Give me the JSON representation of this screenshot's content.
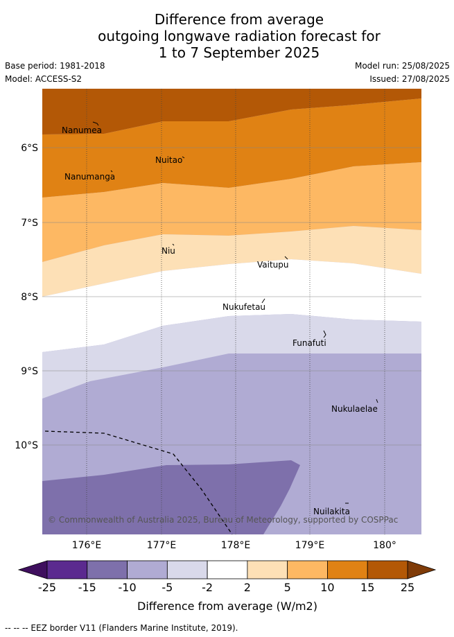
{
  "header": {
    "title_line1": "Difference from average",
    "title_line2": "outgoing longwave radiation forecast for",
    "title_line3": "1 to 7 September 2025",
    "base_period": "Base period: 1981-2018",
    "model": "Model: ACCESS-S2",
    "model_run": "Model run: 25/08/2025",
    "issued": "Issued: 27/08/2025"
  },
  "map": {
    "x_ticks": [
      "176°E",
      "177°E",
      "178°E",
      "179°E",
      "180°"
    ],
    "y_ticks": [
      "6°S",
      "7°S",
      "8°S",
      "9°S",
      "10°S"
    ],
    "places": [
      "Nanumea",
      "Nuitao",
      "Nanumanga",
      "Niu",
      "Vaitupu",
      "Nukufetau",
      "Funafuti",
      "Nukulaelae",
      "Nuilakita"
    ],
    "copyright": "© Commonwealth of Australia 2025, Bureau of Meteorology, supported by COSPPac"
  },
  "colorbar": {
    "tick_labels": [
      "-25",
      "-15",
      "-10",
      "-5",
      "-2",
      "2",
      "5",
      "10",
      "15",
      "25"
    ],
    "colors": [
      "#5b2a8f",
      "#7e70ab",
      "#b0abd3",
      "#d9d9ea",
      "#ffffff",
      "#fde0b6",
      "#fdb863",
      "#e08214",
      "#b35806"
    ],
    "under_color": "#3f0f5e",
    "over_color": "#7f3b08",
    "label": "Difference from average (W/m2)"
  },
  "footnote": "--  --  -- EEZ border V11 (Flanders Marine Institute, 2019)."
}
